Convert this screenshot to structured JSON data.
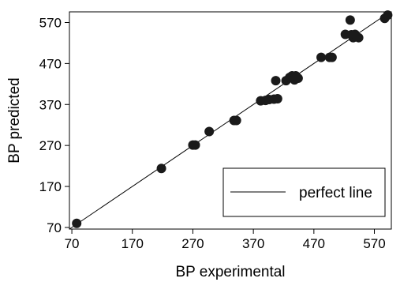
{
  "chart_data": {
    "type": "scatter",
    "title": "",
    "xlabel": "BP experimental",
    "ylabel": "BP predicted",
    "xlim": [
      66,
      598
    ],
    "ylim": [
      66,
      596
    ],
    "xticks": [
      70,
      170,
      270,
      370,
      470,
      570
    ],
    "yticks": [
      70,
      170,
      270,
      370,
      470,
      570
    ],
    "xtick_labels": [
      "70",
      "170",
      "270",
      "370",
      "470",
      "570"
    ],
    "ytick_labels": [
      "70",
      "170",
      "270",
      "370",
      "470",
      "570"
    ],
    "grid": false,
    "legend": {
      "position": "bottom-right",
      "entries": [
        "perfect line"
      ]
    },
    "reference_line": {
      "name": "perfect line",
      "slope": 1,
      "intercept": 0
    },
    "points": [
      {
        "x": 78,
        "y": 80
      },
      {
        "x": 218,
        "y": 214
      },
      {
        "x": 270,
        "y": 271
      },
      {
        "x": 274,
        "y": 271
      },
      {
        "x": 297,
        "y": 304
      },
      {
        "x": 338,
        "y": 331
      },
      {
        "x": 342,
        "y": 331
      },
      {
        "x": 382,
        "y": 379
      },
      {
        "x": 390,
        "y": 380
      },
      {
        "x": 396,
        "y": 382
      },
      {
        "x": 404,
        "y": 383
      },
      {
        "x": 410,
        "y": 384
      },
      {
        "x": 407,
        "y": 428
      },
      {
        "x": 424,
        "y": 428
      },
      {
        "x": 430,
        "y": 436
      },
      {
        "x": 434,
        "y": 440
      },
      {
        "x": 438,
        "y": 430
      },
      {
        "x": 440,
        "y": 440
      },
      {
        "x": 444,
        "y": 434
      },
      {
        "x": 482,
        "y": 485
      },
      {
        "x": 496,
        "y": 485
      },
      {
        "x": 500,
        "y": 485
      },
      {
        "x": 522,
        "y": 541
      },
      {
        "x": 530,
        "y": 576
      },
      {
        "x": 532,
        "y": 540
      },
      {
        "x": 535,
        "y": 533
      },
      {
        "x": 538,
        "y": 541
      },
      {
        "x": 544,
        "y": 533
      },
      {
        "x": 587,
        "y": 580
      },
      {
        "x": 592,
        "y": 588
      }
    ],
    "marker_color": "#1a1a1a",
    "line_color": "#000000"
  }
}
